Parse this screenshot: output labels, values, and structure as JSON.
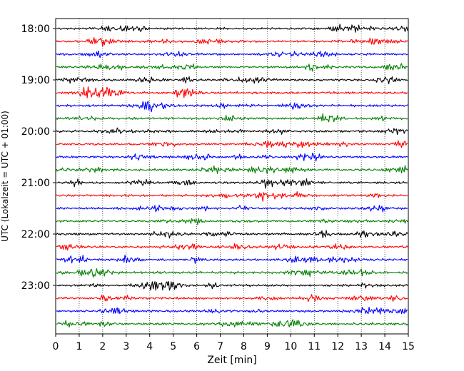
{
  "chart_data": {
    "type": "line",
    "title": "",
    "xlabel": "Zeit  [min]",
    "ylabel": "UTC (Lokalzeit = UTC + 01:00)",
    "xlim": [
      0,
      15
    ],
    "x_ticks": [
      "0",
      "1",
      "2",
      "3",
      "4",
      "5",
      "6",
      "7",
      "8",
      "9",
      "10",
      "11",
      "12",
      "13",
      "14",
      "15"
    ],
    "y_ticks": [
      "18:00",
      "19:00",
      "20:00",
      "21:00",
      "22:00",
      "23:00"
    ],
    "grid": "vertical dotted lines at each minute",
    "trace_interval_min": 15,
    "traces_start": "18:00",
    "trace_count": 24,
    "trace_colors": [
      "#000000",
      "#ff0000",
      "#0000ff",
      "#007f00"
    ]
  }
}
